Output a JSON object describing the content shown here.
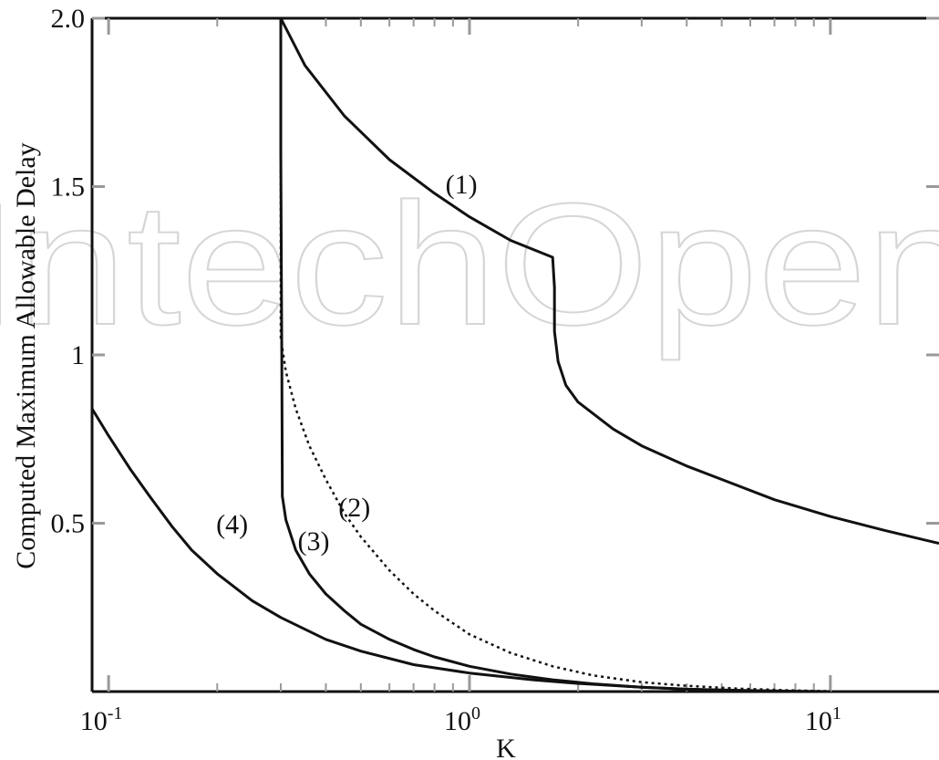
{
  "chart_data": {
    "type": "line",
    "title": "",
    "xlabel": "K",
    "ylabel": "Computed Maximum Allowable Delay",
    "xscale": "log",
    "xlim": [
      0.09,
      20
    ],
    "ylim": [
      0,
      2.0
    ],
    "grid": false,
    "x_ticks": [
      {
        "value": 0.1,
        "base": "10",
        "exp": "-1"
      },
      {
        "value": 1,
        "base": "10",
        "exp": "0"
      },
      {
        "value": 10,
        "base": "10",
        "exp": "1"
      }
    ],
    "y_ticks": [
      {
        "value": 0.5,
        "label": "0.5"
      },
      {
        "value": 1,
        "label": "1"
      },
      {
        "value": 1.5,
        "label": "1.5"
      },
      {
        "value": 2,
        "label": "2.0"
      }
    ],
    "watermark": "IntechOpen",
    "series": [
      {
        "name": "(1)",
        "style": "solid",
        "label_at": [
          0.95,
          1.48
        ],
        "points": [
          [
            0.3,
            2.0
          ],
          [
            0.35,
            1.86
          ],
          [
            0.45,
            1.71
          ],
          [
            0.6,
            1.58
          ],
          [
            0.8,
            1.48
          ],
          [
            1.0,
            1.41
          ],
          [
            1.3,
            1.34
          ],
          [
            1.7,
            1.29
          ],
          [
            1.72,
            1.2
          ],
          [
            1.72,
            1.07
          ],
          [
            1.76,
            0.98
          ],
          [
            1.85,
            0.91
          ],
          [
            2.0,
            0.86
          ],
          [
            2.5,
            0.78
          ],
          [
            3.0,
            0.73
          ],
          [
            4.0,
            0.67
          ],
          [
            5.0,
            0.63
          ],
          [
            7.0,
            0.57
          ],
          [
            10.0,
            0.52
          ],
          [
            14.0,
            0.48
          ],
          [
            20.0,
            0.44
          ]
        ]
      },
      {
        "name": "(2)",
        "style": "dotted",
        "label_at": [
          0.48,
          0.52
        ],
        "points": [
          [
            0.3,
            1.55
          ],
          [
            0.3,
            1.05
          ],
          [
            0.31,
            0.95
          ],
          [
            0.33,
            0.84
          ],
          [
            0.36,
            0.73
          ],
          [
            0.4,
            0.63
          ],
          [
            0.45,
            0.53
          ],
          [
            0.5,
            0.46
          ],
          [
            0.6,
            0.36
          ],
          [
            0.7,
            0.29
          ],
          [
            0.8,
            0.24
          ],
          [
            1.0,
            0.17
          ],
          [
            1.3,
            0.115
          ],
          [
            1.7,
            0.075
          ],
          [
            2.2,
            0.048
          ],
          [
            3.0,
            0.028
          ],
          [
            4.0,
            0.017
          ],
          [
            5.5,
            0.009
          ],
          [
            7.5,
            0.004
          ],
          [
            10.0,
            0.001
          ]
        ]
      },
      {
        "name": "(3)",
        "style": "solid",
        "label_at": [
          0.37,
          0.42
        ],
        "points": [
          [
            0.3,
            2.0
          ],
          [
            0.3,
            1.6
          ],
          [
            0.302,
            1.0
          ],
          [
            0.303,
            0.58
          ],
          [
            0.31,
            0.51
          ],
          [
            0.33,
            0.42
          ],
          [
            0.36,
            0.35
          ],
          [
            0.4,
            0.29
          ],
          [
            0.45,
            0.24
          ],
          [
            0.5,
            0.2
          ],
          [
            0.6,
            0.155
          ],
          [
            0.7,
            0.125
          ],
          [
            0.8,
            0.103
          ],
          [
            1.0,
            0.075
          ],
          [
            1.3,
            0.052
          ],
          [
            1.7,
            0.035
          ],
          [
            2.2,
            0.023
          ],
          [
            3.0,
            0.013
          ],
          [
            4.0,
            0.007
          ],
          [
            5.5,
            0.003
          ],
          [
            7.5,
            0.001
          ]
        ]
      },
      {
        "name": "(4)",
        "style": "solid",
        "label_at": [
          0.22,
          0.47
        ],
        "points": [
          [
            0.09,
            0.84
          ],
          [
            0.1,
            0.76
          ],
          [
            0.115,
            0.66
          ],
          [
            0.13,
            0.58
          ],
          [
            0.15,
            0.49
          ],
          [
            0.17,
            0.42
          ],
          [
            0.2,
            0.35
          ],
          [
            0.25,
            0.27
          ],
          [
            0.3,
            0.22
          ],
          [
            0.4,
            0.155
          ],
          [
            0.5,
            0.12
          ],
          [
            0.7,
            0.08
          ],
          [
            1.0,
            0.055
          ],
          [
            1.5,
            0.035
          ],
          [
            2.0,
            0.024
          ],
          [
            3.0,
            0.013
          ],
          [
            4.0,
            0.007
          ],
          [
            6.0,
            0.003
          ],
          [
            8.0,
            0.001
          ],
          [
            10.0,
            0.0
          ]
        ]
      }
    ]
  }
}
